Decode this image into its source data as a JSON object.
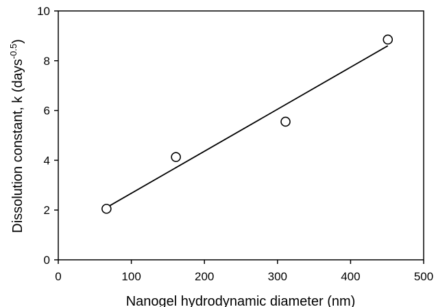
{
  "chart_data": {
    "type": "scatter",
    "title": "",
    "xlabel": "Nanogel hydrodynamic diameter (nm)",
    "ylabel": {
      "main": "Dissolution constant, k (days",
      "superscript": "-0.5",
      "close": ")"
    },
    "xlim": [
      0,
      500
    ],
    "ylim": [
      0,
      10
    ],
    "xticks": [
      0,
      100,
      200,
      300,
      400,
      500
    ],
    "yticks": [
      0,
      2,
      4,
      6,
      8,
      10
    ],
    "grid": false,
    "legend": "none",
    "points": [
      {
        "x": 66,
        "y": 2.05
      },
      {
        "x": 161,
        "y": 4.13
      },
      {
        "x": 311,
        "y": 5.55
      },
      {
        "x": 451,
        "y": 8.85
      }
    ],
    "fit_line": {
      "x": [
        66,
        451
      ],
      "y": [
        2.1,
        8.6
      ]
    },
    "colors": {
      "marker": "#000000",
      "line": "#000000",
      "axis": "#000000"
    }
  }
}
